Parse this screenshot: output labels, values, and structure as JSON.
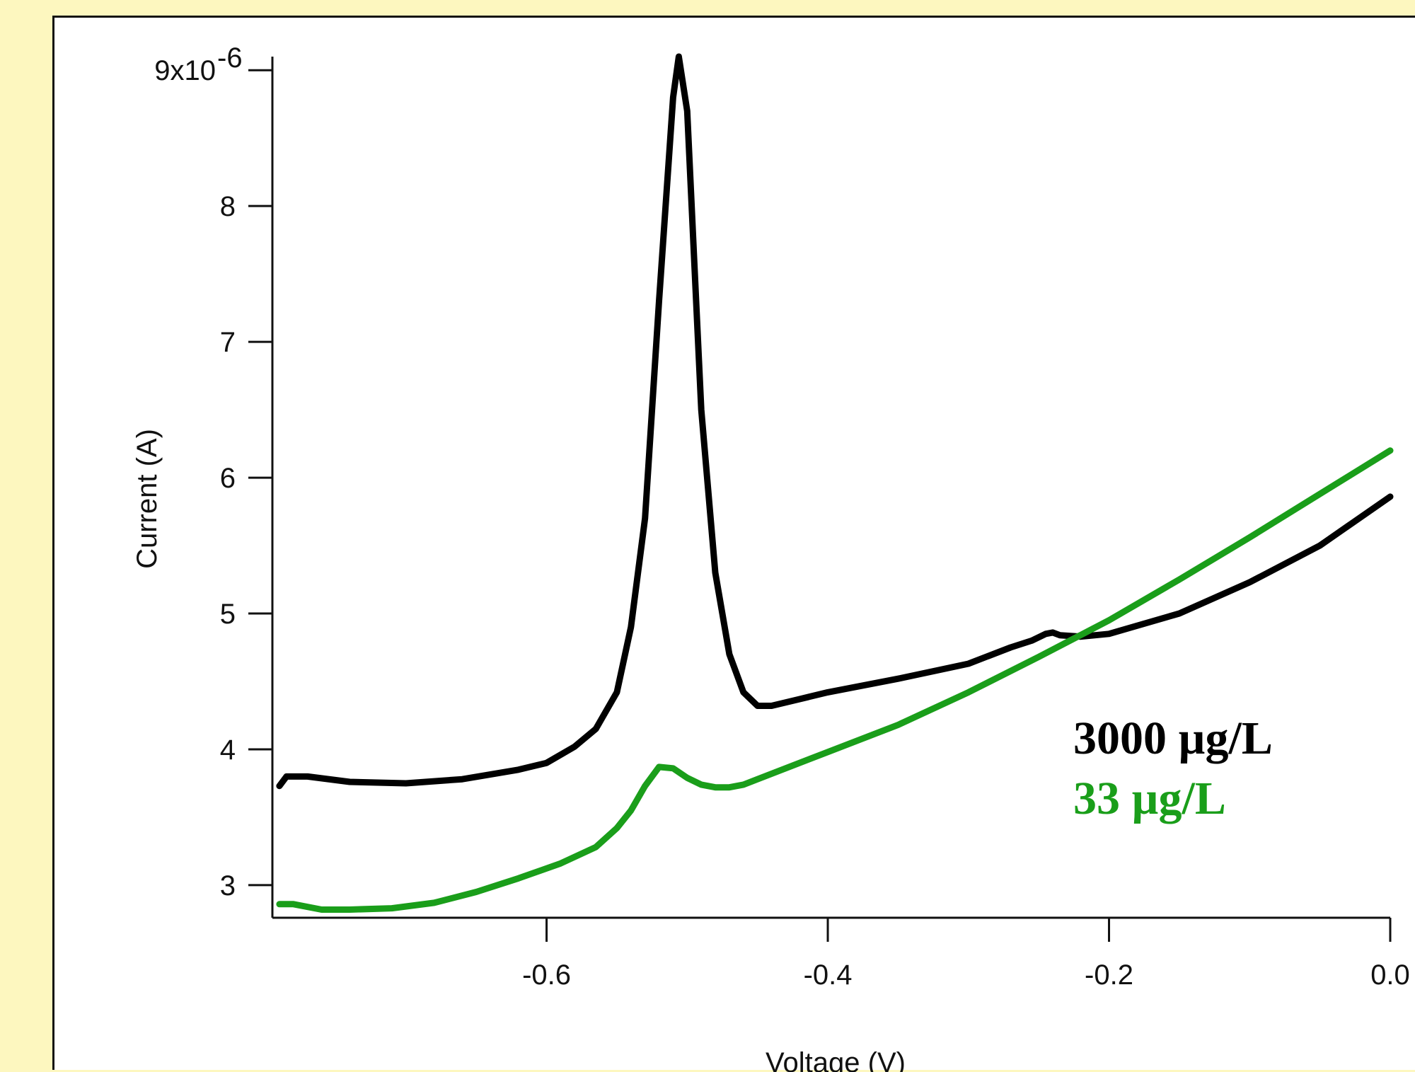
{
  "chart_data": {
    "type": "line",
    "xlabel": "Voltage (V)",
    "ylabel": "Current (A)",
    "xlim": [
      -0.795,
      0.0
    ],
    "ylim": [
      2.76e-06,
      9.1e-06
    ],
    "x_ticks": [
      {
        "value": -0.6,
        "label": "-0.6"
      },
      {
        "value": -0.4,
        "label": "-0.4"
      },
      {
        "value": -0.2,
        "label": "-0.2"
      },
      {
        "value": 0.0,
        "label": "0.0"
      }
    ],
    "y_ticks": [
      {
        "value": 3e-06,
        "label": "3"
      },
      {
        "value": 4e-06,
        "label": "4"
      },
      {
        "value": 5e-06,
        "label": "5"
      },
      {
        "value": 6e-06,
        "label": "6"
      },
      {
        "value": 7e-06,
        "label": "7"
      },
      {
        "value": 8e-06,
        "label": "8"
      },
      {
        "value": 9e-06,
        "label": "9x10",
        "exponent": "-6"
      }
    ],
    "legend_placement": "right",
    "series": [
      {
        "name": "3000 µg/L",
        "color": "#000000",
        "x": [
          -0.79,
          -0.785,
          -0.77,
          -0.74,
          -0.7,
          -0.66,
          -0.62,
          -0.6,
          -0.58,
          -0.565,
          -0.55,
          -0.54,
          -0.53,
          -0.52,
          -0.51,
          -0.506,
          -0.5,
          -0.495,
          -0.49,
          -0.48,
          -0.47,
          -0.46,
          -0.45,
          -0.44,
          -0.42,
          -0.4,
          -0.35,
          -0.3,
          -0.27,
          -0.255,
          -0.245,
          -0.24,
          -0.235,
          -0.22,
          -0.2,
          -0.15,
          -0.1,
          -0.05,
          0.0
        ],
        "y": [
          3.73e-06,
          3.8e-06,
          3.8e-06,
          3.76e-06,
          3.75e-06,
          3.78e-06,
          3.85e-06,
          3.9e-06,
          4.02e-06,
          4.15e-06,
          4.42e-06,
          4.9e-06,
          5.7e-06,
          7.3e-06,
          8.8e-06,
          9.1e-06,
          8.7e-06,
          7.6e-06,
          6.5e-06,
          5.3e-06,
          4.7e-06,
          4.42e-06,
          4.32e-06,
          4.32e-06,
          4.37e-06,
          4.42e-06,
          4.52e-06,
          4.63e-06,
          4.75e-06,
          4.8e-06,
          4.85e-06,
          4.86e-06,
          4.84e-06,
          4.83e-06,
          4.85e-06,
          5e-06,
          5.23e-06,
          5.5e-06,
          5.86e-06
        ]
      },
      {
        "name": "33 µg/L",
        "color": "#1a9e1a",
        "x": [
          -0.79,
          -0.78,
          -0.76,
          -0.74,
          -0.71,
          -0.68,
          -0.65,
          -0.62,
          -0.59,
          -0.565,
          -0.55,
          -0.54,
          -0.53,
          -0.52,
          -0.51,
          -0.5,
          -0.49,
          -0.48,
          -0.47,
          -0.46,
          -0.45,
          -0.43,
          -0.4,
          -0.35,
          -0.3,
          -0.25,
          -0.2,
          -0.15,
          -0.1,
          -0.05,
          0.0
        ],
        "y": [
          2.86e-06,
          2.86e-06,
          2.82e-06,
          2.82e-06,
          2.83e-06,
          2.87e-06,
          2.95e-06,
          3.05e-06,
          3.16e-06,
          3.28e-06,
          3.42e-06,
          3.55e-06,
          3.73e-06,
          3.87e-06,
          3.86e-06,
          3.79e-06,
          3.74e-06,
          3.72e-06,
          3.72e-06,
          3.74e-06,
          3.78e-06,
          3.86e-06,
          3.98e-06,
          4.18e-06,
          4.42e-06,
          4.68e-06,
          4.95e-06,
          5.25e-06,
          5.56e-06,
          5.88e-06,
          6.2e-06
        ]
      }
    ]
  }
}
